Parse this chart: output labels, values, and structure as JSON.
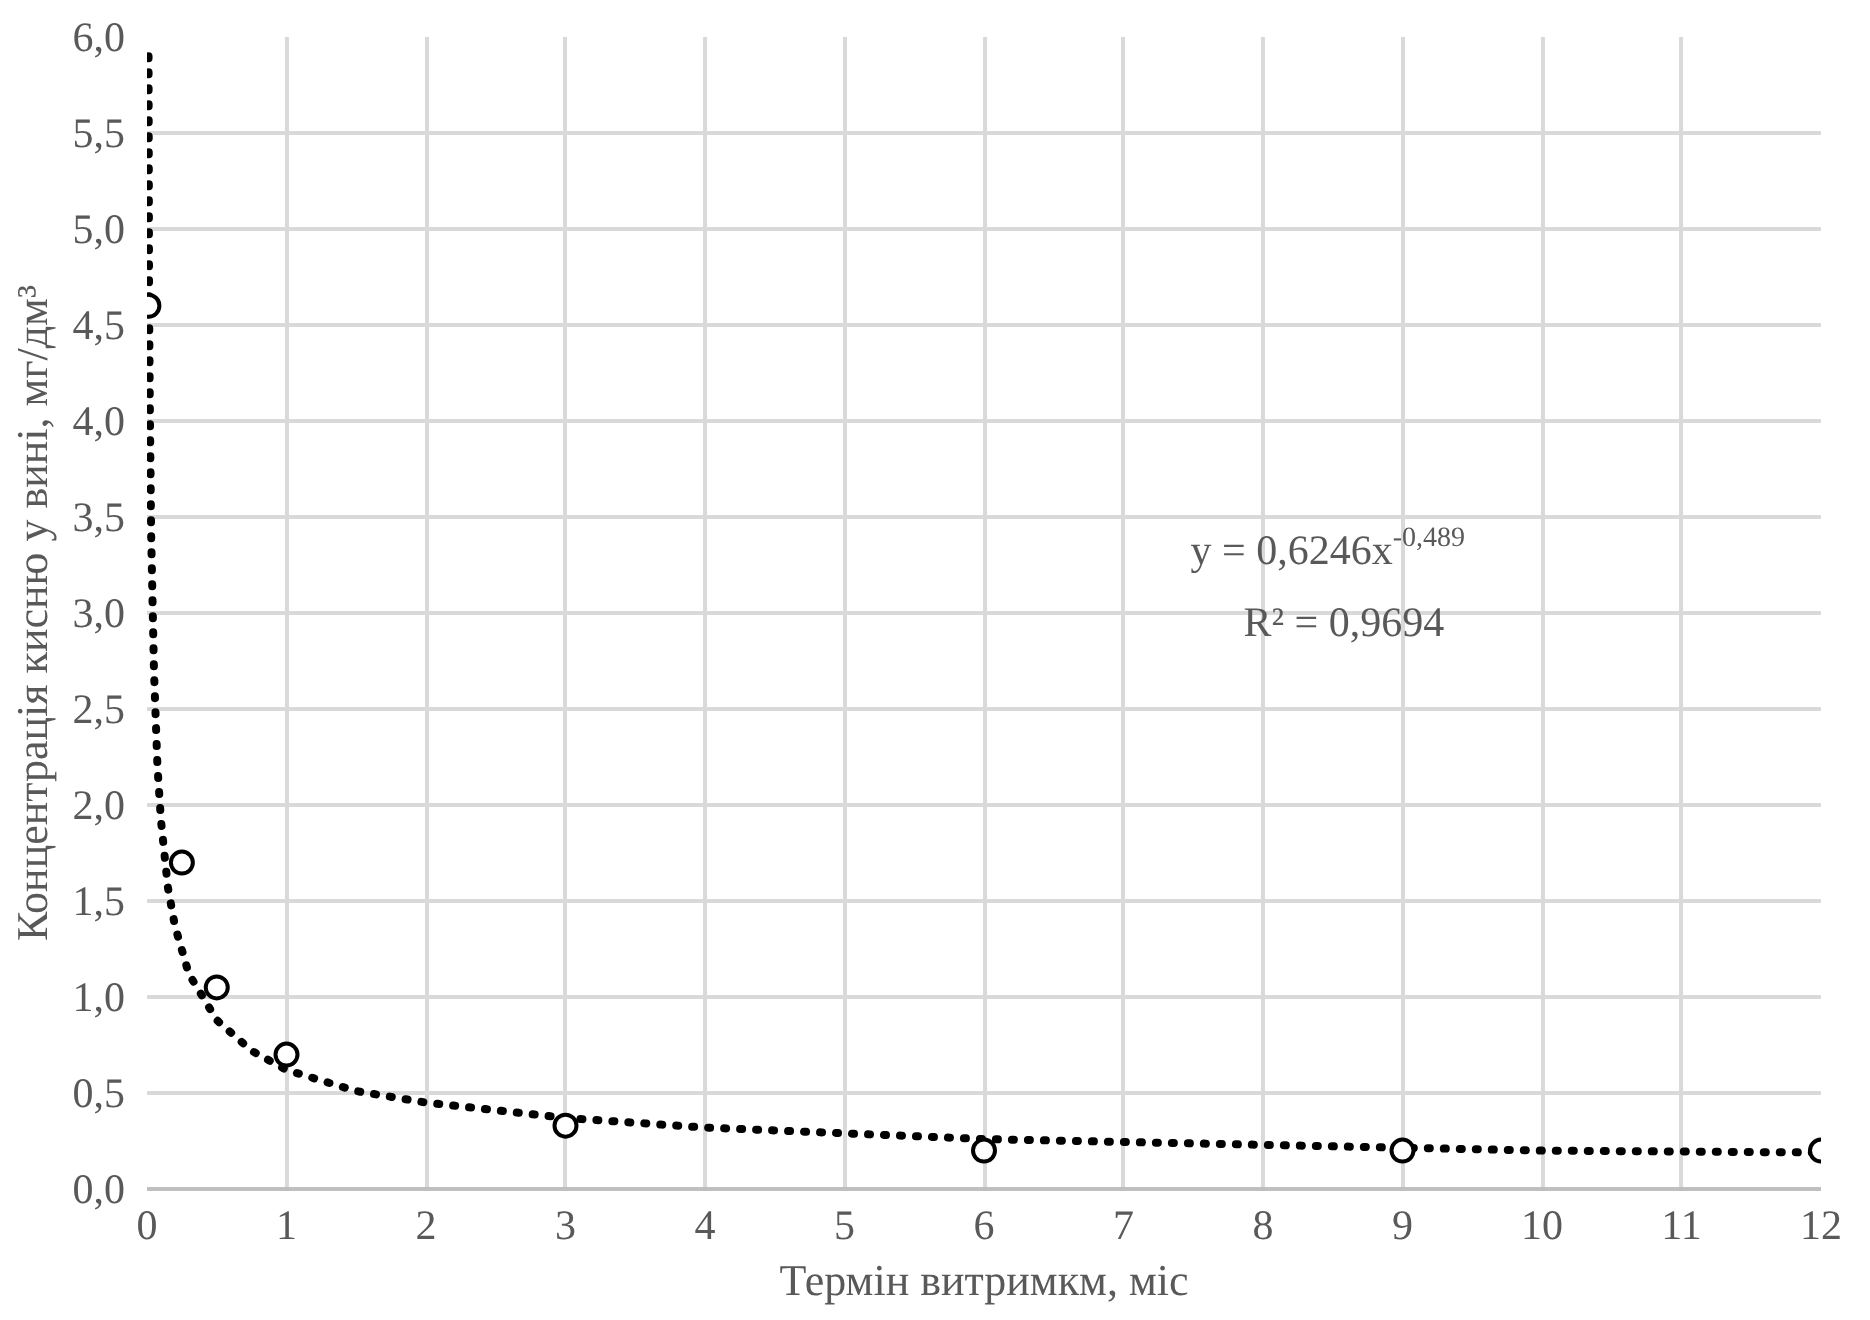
{
  "chart_data": {
    "type": "scatter",
    "xlabel": "Термін витримкм, міс",
    "ylabel": "Концентрація кисню у вині, мг/дм³",
    "xlim": [
      0,
      12
    ],
    "ylim": [
      0,
      6
    ],
    "xticks": [
      0,
      1,
      2,
      3,
      4,
      5,
      6,
      7,
      8,
      9,
      10,
      11,
      12
    ],
    "yticks": [
      {
        "value": 0,
        "label": "0,0"
      },
      {
        "value": 0.5,
        "label": "0,5"
      },
      {
        "value": 1,
        "label": "1,0"
      },
      {
        "value": 1.5,
        "label": "1,5"
      },
      {
        "value": 2,
        "label": "2,0"
      },
      {
        "value": 2.5,
        "label": "2,5"
      },
      {
        "value": 3,
        "label": "3,0"
      },
      {
        "value": 3.5,
        "label": "3,5"
      },
      {
        "value": 4,
        "label": "4,0"
      },
      {
        "value": 4.5,
        "label": "4,5"
      },
      {
        "value": 5,
        "label": "5,0"
      },
      {
        "value": 5.5,
        "label": "5,5"
      },
      {
        "value": 6,
        "label": "6,0"
      }
    ],
    "grid": true,
    "annotations": [
      "y = 0,6246x$^{-0,489}$",
      "R² = 0,9694"
    ],
    "series": [
      {
        "marker": "circle",
        "color": "#000000",
        "x": [
          0.01,
          0.25,
          0.5,
          1,
          3,
          6,
          9,
          12
        ],
        "values": [
          4.6,
          1.7,
          1.05,
          0.7,
          0.33,
          0.2,
          0.2,
          0.2
        ]
      },
      {
        "type": "line",
        "marker": "none",
        "line_style": "dotted",
        "color": "#000000",
        "x": [
          0.011,
          0.015,
          0.02,
          0.03,
          0.05,
          0.075,
          0.1,
          0.15,
          0.2,
          0.3,
          0.5,
          0.75,
          1,
          1.5,
          2,
          3,
          4,
          5,
          6,
          8,
          10,
          12
        ],
        "values": [
          5.9,
          4.6,
          4.1,
          3.4,
          2.7,
          2.2,
          1.92,
          1.57,
          1.37,
          1.12,
          0.88,
          0.72,
          0.62,
          0.51,
          0.45,
          0.37,
          0.32,
          0.29,
          0.26,
          0.23,
          0.2,
          0.19
        ]
      }
    ]
  }
}
